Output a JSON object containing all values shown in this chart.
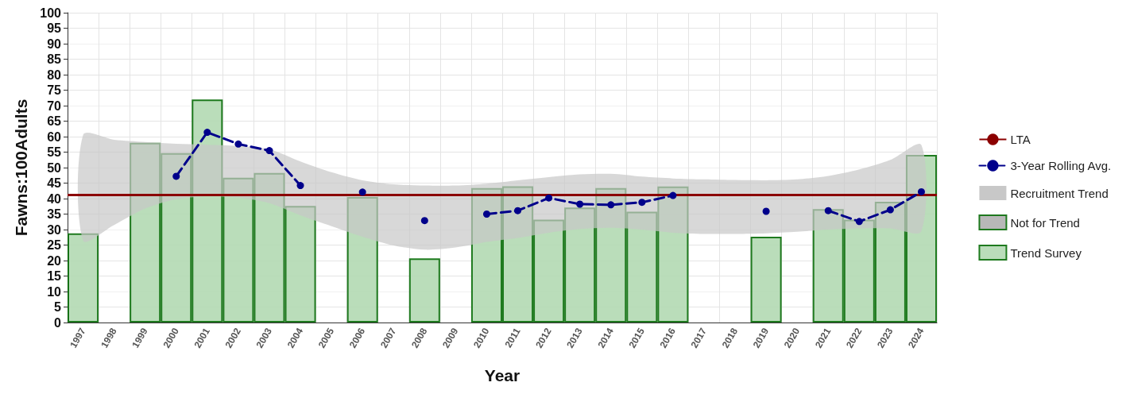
{
  "chart_data": {
    "type": "bar",
    "xlabel": "Year",
    "ylabel": "Fawns:100Adults",
    "categories": [
      "1997",
      "1998",
      "1999",
      "2000",
      "2001",
      "2002",
      "2003",
      "2004",
      "2005",
      "2006",
      "2007",
      "2008",
      "2009",
      "2010",
      "2011",
      "2012",
      "2013",
      "2014",
      "2015",
      "2016",
      "2017",
      "2018",
      "2019",
      "2020",
      "2021",
      "2022",
      "2023",
      "2024"
    ],
    "series": [
      {
        "name": "Not for Trend",
        "color": "#b0b0b0",
        "values": [
          null,
          null,
          null,
          null,
          null,
          null,
          null,
          null,
          null,
          null,
          null,
          null,
          null,
          null,
          null,
          null,
          null,
          null,
          null,
          null,
          null,
          null,
          null,
          null,
          null,
          null,
          null,
          null
        ]
      },
      {
        "name": "Trend Survey",
        "color": "#b3d9b3",
        "values": [
          28.8,
          null,
          58,
          54.7,
          72,
          46.7,
          48.3,
          37.6,
          null,
          40.5,
          null,
          20.7,
          null,
          43.4,
          44,
          33.2,
          37.1,
          43.4,
          35.8,
          43.9,
          null,
          null,
          27.7,
          null,
          36.6,
          33.2,
          39,
          54.1
        ]
      },
      {
        "name": "3-Year Rolling Avg.",
        "type": "line",
        "color": "#00008b",
        "line_style": "dashed",
        "marker": "circle",
        "values": [
          null,
          null,
          null,
          47.2,
          61.4,
          57.6,
          55.5,
          44.2,
          null,
          42.1,
          null,
          32.9,
          null,
          35,
          36.1,
          40.2,
          38.2,
          38,
          38.8,
          41,
          null,
          null,
          35.9,
          null,
          36.1,
          32.6,
          36.4,
          42.2
        ]
      },
      {
        "name": "Recruitment Trend",
        "type": "area",
        "color": "#c8c8c8",
        "values": [
          null,
          null,
          null,
          null,
          null,
          null,
          null,
          null,
          null,
          null,
          null,
          null,
          null,
          null,
          null,
          null,
          null,
          null,
          null,
          null,
          null,
          null,
          null,
          null,
          null,
          null,
          null,
          null
        ],
        "lower": [
          26.5,
          31.5,
          36.8,
          39.8,
          40.7,
          40.3,
          38.5,
          34.6,
          31.1,
          27.7,
          24.9,
          23.5,
          24.2,
          26,
          27.3,
          29,
          30.2,
          30.6,
          30,
          29,
          28.6,
          28.6,
          28.8,
          29.3,
          30,
          30.4,
          30.4,
          29.5
        ],
        "upper": [
          60.5,
          59,
          58.3,
          57.7,
          57.4,
          57,
          55.9,
          52,
          48.5,
          45.9,
          44.6,
          44.2,
          44.2,
          44.8,
          45.9,
          46.9,
          47.8,
          48,
          47.1,
          46.5,
          46.2,
          46,
          45.9,
          46.2,
          47.3,
          49.4,
          52.5,
          57.3
        ]
      }
    ],
    "ref_lines": [
      {
        "axis": "y",
        "value": 41.2,
        "label": "LTA",
        "color": "#8b0000"
      }
    ],
    "ylim": [
      0,
      100
    ],
    "yticks": [
      0,
      5,
      10,
      15,
      20,
      25,
      30,
      35,
      40,
      45,
      50,
      55,
      60,
      65,
      70,
      75,
      80,
      85,
      90,
      95,
      100
    ],
    "grid": true,
    "legend": "right"
  }
}
